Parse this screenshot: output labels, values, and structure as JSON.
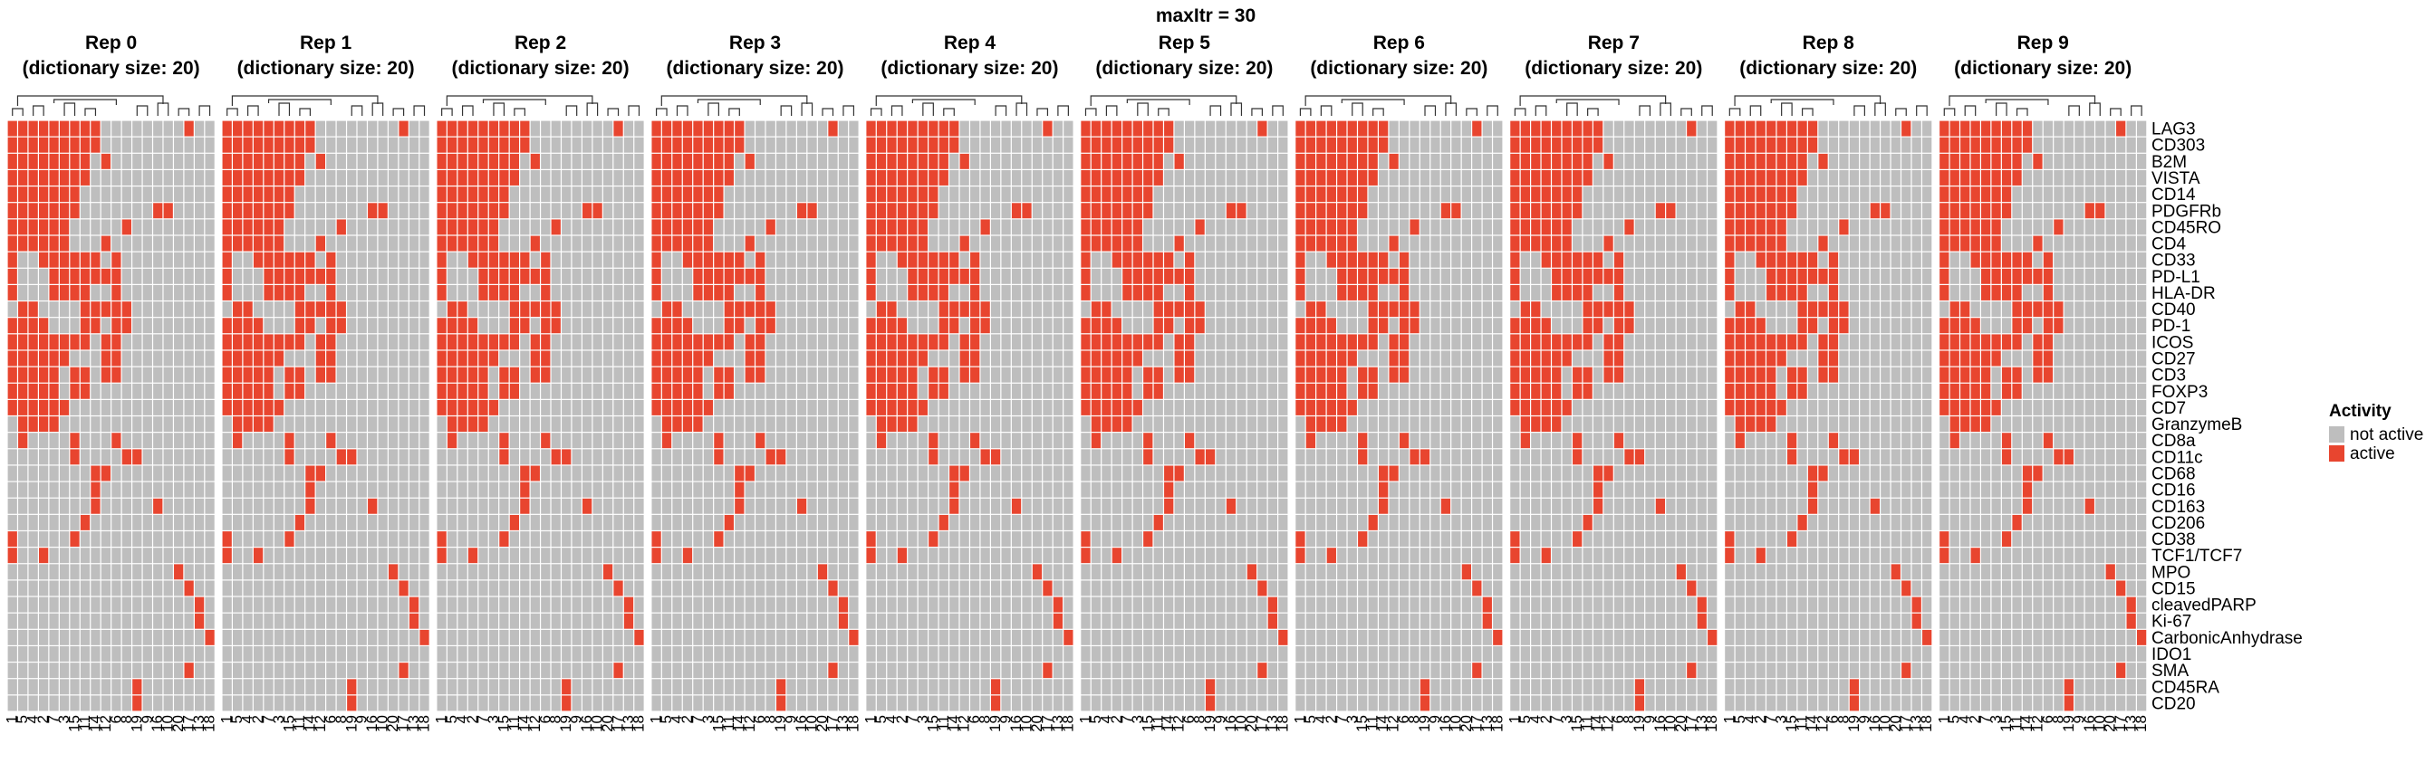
{
  "figure": {
    "title": "maxItr = 30",
    "legend": {
      "title": "Activity",
      "items": [
        {
          "label": "not active",
          "color": "#BEBEBE"
        },
        {
          "label": "active",
          "color": "#E8452F"
        }
      ]
    }
  },
  "chart_data": {
    "type": "heatmap",
    "title": "maxItr = 30",
    "facets": [
      {
        "title": "Rep 0",
        "subtitle": "(dictionary size: 20)"
      },
      {
        "title": "Rep 1",
        "subtitle": "(dictionary size: 20)"
      },
      {
        "title": "Rep 2",
        "subtitle": "(dictionary size: 20)"
      },
      {
        "title": "Rep 3",
        "subtitle": "(dictionary size: 20)"
      },
      {
        "title": "Rep 4",
        "subtitle": "(dictionary size: 20)"
      },
      {
        "title": "Rep 5",
        "subtitle": "(dictionary size: 20)"
      },
      {
        "title": "Rep 6",
        "subtitle": "(dictionary size: 20)"
      },
      {
        "title": "Rep 7",
        "subtitle": "(dictionary size: 20)"
      },
      {
        "title": "Rep 8",
        "subtitle": "(dictionary size: 20)"
      },
      {
        "title": "Rep 9",
        "subtitle": "(dictionary size: 20)"
      }
    ],
    "columns": [
      "1",
      "5",
      "4",
      "2",
      "7",
      "3",
      "15",
      "11",
      "14",
      "12",
      "6",
      "8",
      "19",
      "9",
      "16",
      "10",
      "20",
      "17",
      "13",
      "18"
    ],
    "rows": [
      "LAG3",
      "CD303",
      "B2M",
      "VISTA",
      "CD14",
      "PDGFRb",
      "CD45RO",
      "CD4",
      "CD33",
      "PD-L1",
      "HLA-DR",
      "CD40",
      "PD-1",
      "ICOS",
      "CD27",
      "CD3",
      "FOXP3",
      "CD7",
      "GranzymeB",
      "CD8a",
      "CD11c",
      "CD68",
      "CD16",
      "CD163",
      "CD206",
      "CD38",
      "TCF1/TCF7",
      "MPO",
      "CD15",
      "cleavedPARP",
      "Ki-67",
      "CarbonicAnhydrase",
      "IDO1",
      "SMA",
      "CD45RA",
      "CD20"
    ],
    "matrix": [
      "11111111100000000100",
      "11111111100000000000",
      "11111111010000000000",
      "11111111000000000000",
      "11111110000000000000",
      "11111110000000110000",
      "11111100000100000000",
      "11111100010000000000",
      "10011111101000000000",
      "10001111111000000000",
      "10001111001000000000",
      "01100001111100000000",
      "11110001101100000000",
      "11111111011000000000",
      "11111100011000000000",
      "11111011011000000000",
      "11111011000000000000",
      "11111100000000000000",
      "01111000000000000000",
      "01000010001000000000",
      "00000010000110000000",
      "00000000110000000000",
      "00000000100000000000",
      "00000000100000100000",
      "00000001000000000000",
      "10000010000000000000",
      "10010000000000000000",
      "00000000000000001000",
      "00000000000000000100",
      "00000000000000000010",
      "00000000000000000010",
      "00000000000000000001",
      "00000000000000000000",
      "00000000000000000100",
      "00000000000010000000",
      "00000000000010000000"
    ],
    "legend_position": "right",
    "grid": true
  }
}
